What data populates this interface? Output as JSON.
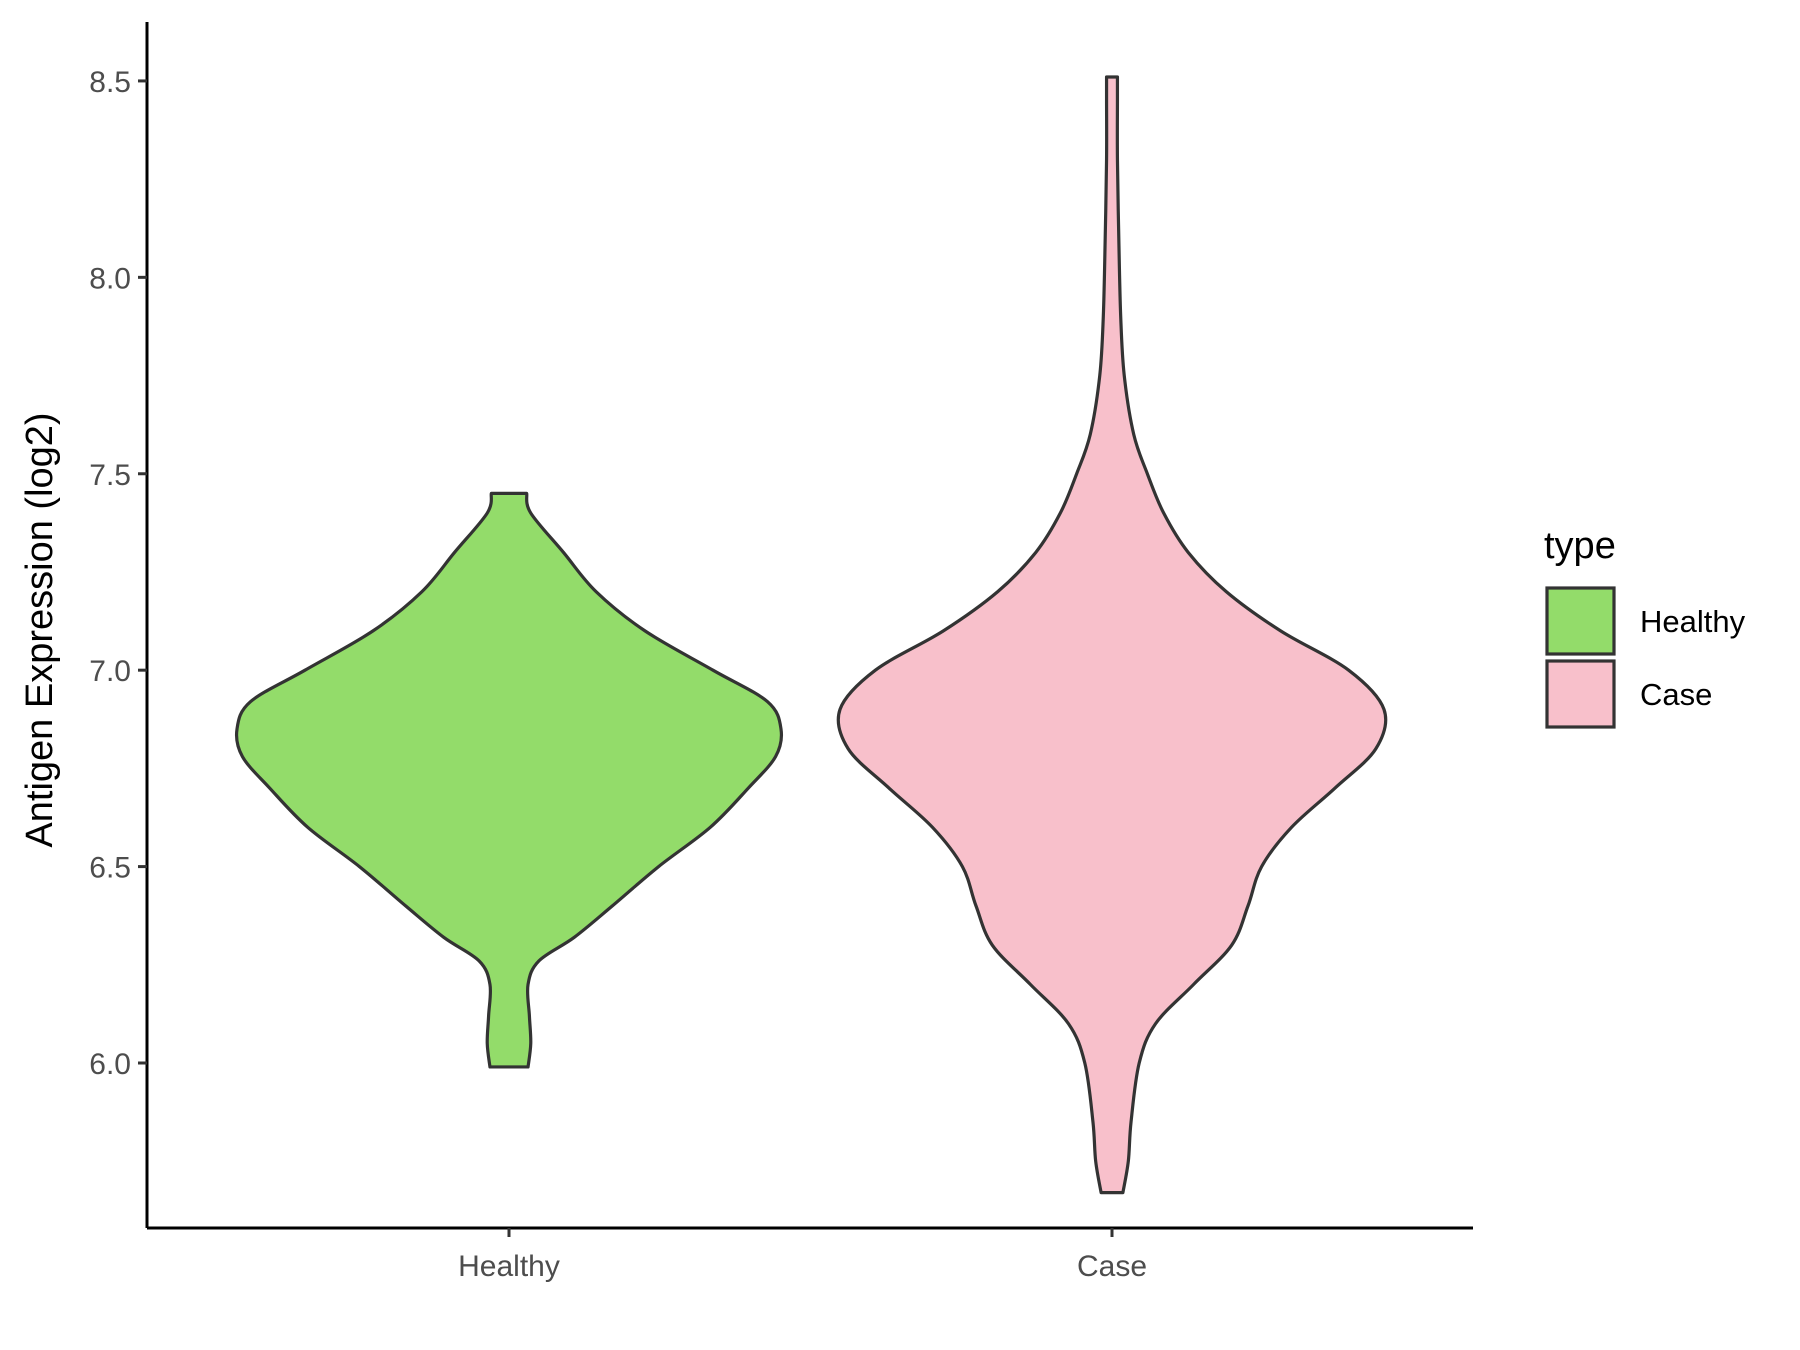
{
  "chart_data": {
    "type": "violin",
    "title": "",
    "xlabel": "",
    "ylabel": "Antigen Expression (log2)",
    "ylim": [
      5.58,
      8.65
    ],
    "yticks": [
      "6.0",
      "6.5",
      "7.0",
      "7.5",
      "8.0",
      "8.5"
    ],
    "grid": false,
    "categories": [
      "Healthy",
      "Case"
    ],
    "legend": {
      "title": "type",
      "position": "right",
      "entries": [
        "Healthy",
        "Case"
      ]
    },
    "series": [
      {
        "name": "Healthy",
        "color": "#93dc6a",
        "range": [
          5.99,
          7.45
        ],
        "density": [
          [
            5.99,
            0.07
          ],
          [
            6.05,
            0.08
          ],
          [
            6.12,
            0.075
          ],
          [
            6.2,
            0.07
          ],
          [
            6.26,
            0.11
          ],
          [
            6.32,
            0.24
          ],
          [
            6.4,
            0.38
          ],
          [
            6.5,
            0.55
          ],
          [
            6.6,
            0.74
          ],
          [
            6.7,
            0.88
          ],
          [
            6.78,
            0.98
          ],
          [
            6.85,
            1.0
          ],
          [
            6.92,
            0.95
          ],
          [
            7.0,
            0.75
          ],
          [
            7.1,
            0.5
          ],
          [
            7.2,
            0.32
          ],
          [
            7.3,
            0.2
          ],
          [
            7.4,
            0.08
          ],
          [
            7.45,
            0.065
          ]
        ]
      },
      {
        "name": "Case",
        "color": "#f8c0cb",
        "range": [
          5.67,
          8.51
        ],
        "density": [
          [
            5.67,
            0.04
          ],
          [
            5.75,
            0.06
          ],
          [
            5.85,
            0.07
          ],
          [
            6.0,
            0.1
          ],
          [
            6.1,
            0.16
          ],
          [
            6.2,
            0.3
          ],
          [
            6.3,
            0.44
          ],
          [
            6.4,
            0.5
          ],
          [
            6.5,
            0.55
          ],
          [
            6.6,
            0.66
          ],
          [
            6.7,
            0.82
          ],
          [
            6.8,
            0.97
          ],
          [
            6.9,
            1.0
          ],
          [
            7.0,
            0.87
          ],
          [
            7.1,
            0.62
          ],
          [
            7.2,
            0.42
          ],
          [
            7.3,
            0.28
          ],
          [
            7.4,
            0.19
          ],
          [
            7.5,
            0.13
          ],
          [
            7.6,
            0.08
          ],
          [
            7.75,
            0.045
          ],
          [
            7.9,
            0.032
          ],
          [
            8.1,
            0.025
          ],
          [
            8.3,
            0.02
          ],
          [
            8.45,
            0.02
          ],
          [
            8.51,
            0.02
          ]
        ]
      }
    ]
  }
}
